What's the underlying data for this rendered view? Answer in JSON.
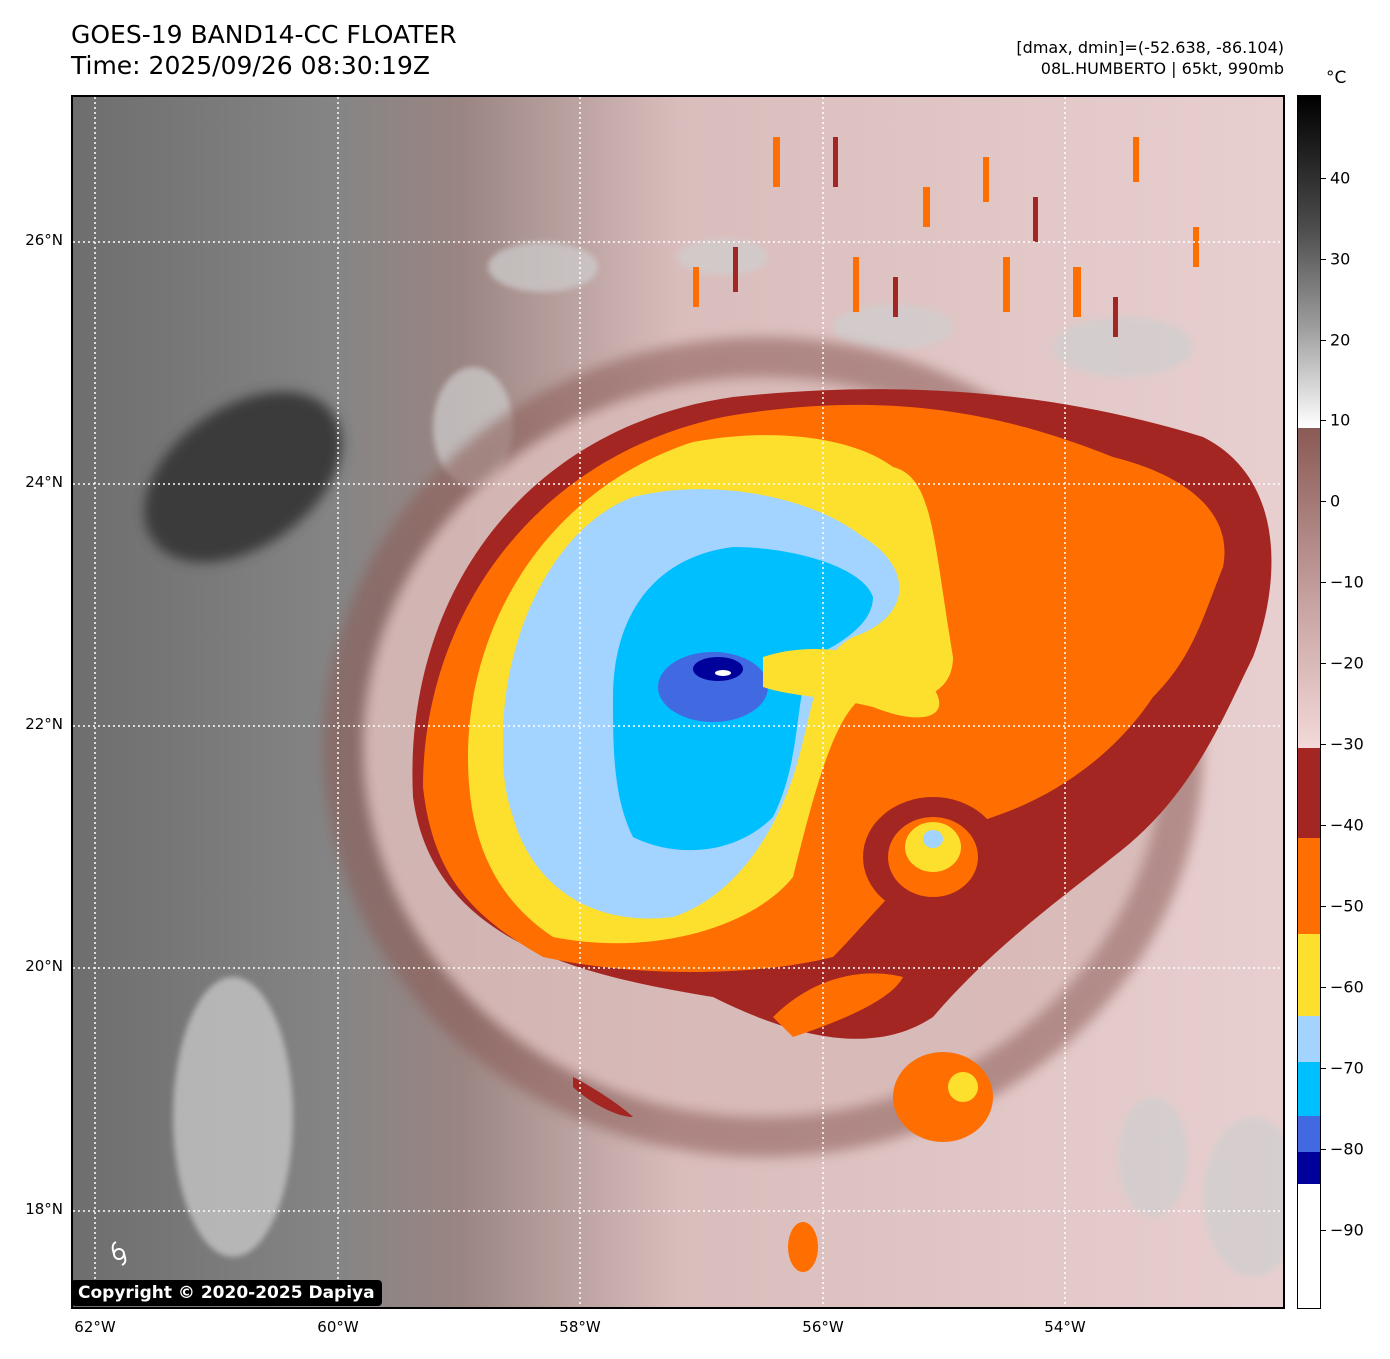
{
  "header": {
    "title_line1": "GOES-19 BAND14-CC FLOATER",
    "title_line2": "Time: 2025/09/26 08:30:19Z",
    "range_text": "[dmax, dmin]=(-52.638, -86.104)",
    "storm_text": "08L.HUMBERTO | 65kt, 990mb"
  },
  "map": {
    "lat_labels": [
      "26°N",
      "24°N",
      "22°N",
      "20°N",
      "18°N"
    ],
    "lon_labels": [
      "62°W",
      "60°W",
      "58°W",
      "56°W",
      "54°W"
    ],
    "copyright": "Copyright © 2020-2025 Dapiya"
  },
  "colorbar": {
    "unit": "°C",
    "ticks": [
      "40",
      "30",
      "20",
      "10",
      "0",
      "−10",
      "−20",
      "−30",
      "−40",
      "−50",
      "−60",
      "−70",
      "−80",
      "−90"
    ],
    "colors": {
      "dark_blue": "#00009a",
      "royal_blue": "#4169e1",
      "cyan": "#00bfff",
      "light_blue": "#a3d3ff",
      "yellow": "#fddf2d",
      "orange": "#ff6e00",
      "dark_red": "#a42622",
      "pink": "#f3d9d9",
      "brown": "#8a5a55"
    }
  }
}
